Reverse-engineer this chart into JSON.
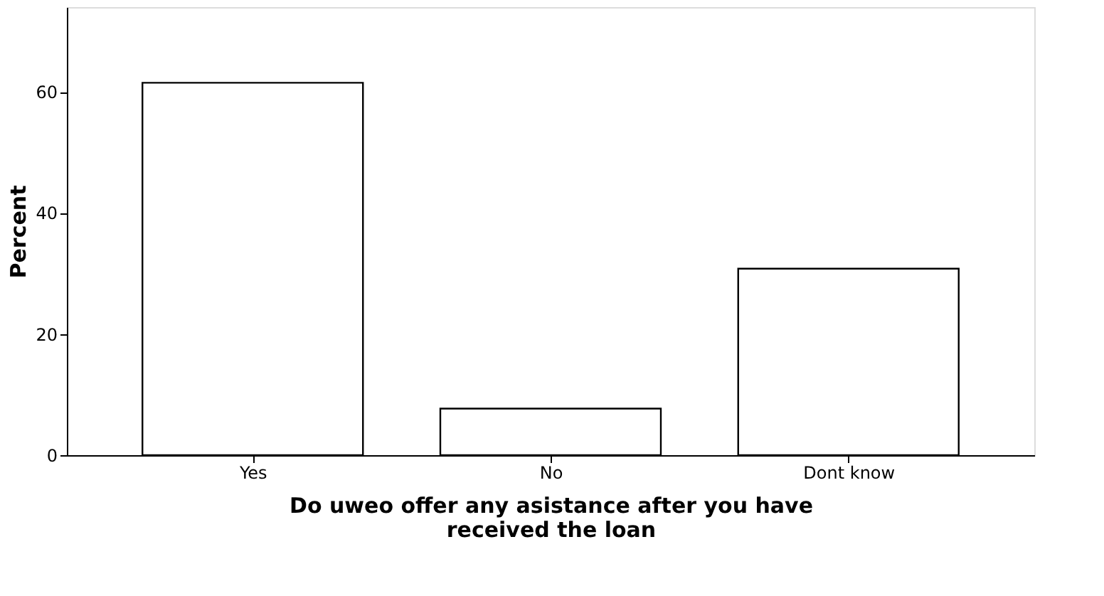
{
  "chart_data": {
    "type": "bar",
    "xlabel": "Do uweo offer any asistance after you have\nreceived the loan",
    "ylabel": "Percent",
    "categories": [
      "Yes",
      "No",
      "Dont know"
    ],
    "values": [
      61.5,
      7.7,
      30.8
    ],
    "color": "#ffffff",
    "ylim": [
      0,
      74
    ],
    "yticks": [
      0,
      20,
      40,
      60
    ],
    "grid": false
  }
}
